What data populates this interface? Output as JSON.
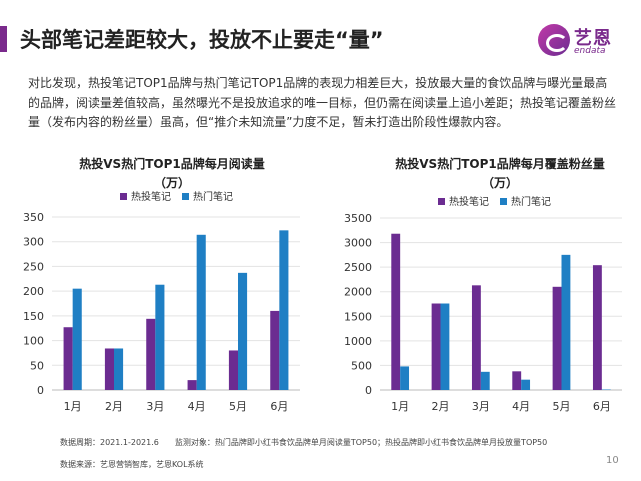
{
  "page_title": "头部笔记差距较大，投放不止要走“量”",
  "logo": {
    "cn": "艺恩",
    "en": "endata"
  },
  "body_text": "对比发现，热投笔记TOP1品牌与热门笔记TOP1品牌的表现力相差巨大，投放最大量的食饮品牌与曝光量最高的品牌，阅读量差值较高，虽然曝光不是投放追求的唯一目标，但仍需在阅读量上追小差距；热投笔记覆盖粉丝量（发布内容的粉丝量）虽高，但“推介未知流量”力度不足，暂未打造出阶段性爆款内容。",
  "footnotes": {
    "period": "数据周期：2021.1-2021.6　　监测对象：热门品牌即小红书食饮品牌单月阅读量TOP50；热投品牌即小红书食饮品牌单月投放量TOP50",
    "source": "数据来源：艺恩营销智库，艺恩KOL系统"
  },
  "page_number": "10",
  "colors": {
    "hot_investment": "#6b2c91",
    "hot_notes": "#1f7fc4",
    "accent": "#7a2a8c"
  },
  "chart_data": [
    {
      "type": "bar",
      "title_lines": [
        "热投VS热门TOP1品牌每月阅读量",
        "（万）"
      ],
      "categories": [
        "1月",
        "2月",
        "3月",
        "4月",
        "5月",
        "6月"
      ],
      "series": [
        {
          "name": "热投笔记",
          "values": [
            127,
            84,
            144,
            20,
            80,
            160
          ]
        },
        {
          "name": "热门笔记",
          "values": [
            205,
            84,
            213,
            314,
            237,
            323
          ]
        }
      ],
      "ylim": [
        0,
        350
      ],
      "yticks": [
        "0",
        "50",
        "100",
        "150",
        "200",
        "250",
        "300",
        "350"
      ],
      "grid": true,
      "legend": "top"
    },
    {
      "type": "bar",
      "title_lines": [
        "热投VS热门TOP1品牌每月覆盖粉丝量",
        "（万）"
      ],
      "categories": [
        "1月",
        "2月",
        "3月",
        "4月",
        "5月",
        "6月"
      ],
      "series": [
        {
          "name": "热投笔记",
          "values": [
            3180,
            1760,
            2130,
            380,
            2100,
            2540
          ]
        },
        {
          "name": "热门笔记",
          "values": [
            480,
            1760,
            370,
            210,
            2750,
            10
          ]
        }
      ],
      "ylim": [
        0,
        3500
      ],
      "yticks": [
        "0",
        "500",
        "1000",
        "1500",
        "2000",
        "2500",
        "3000",
        "3500"
      ],
      "grid": true,
      "legend": "top"
    }
  ]
}
